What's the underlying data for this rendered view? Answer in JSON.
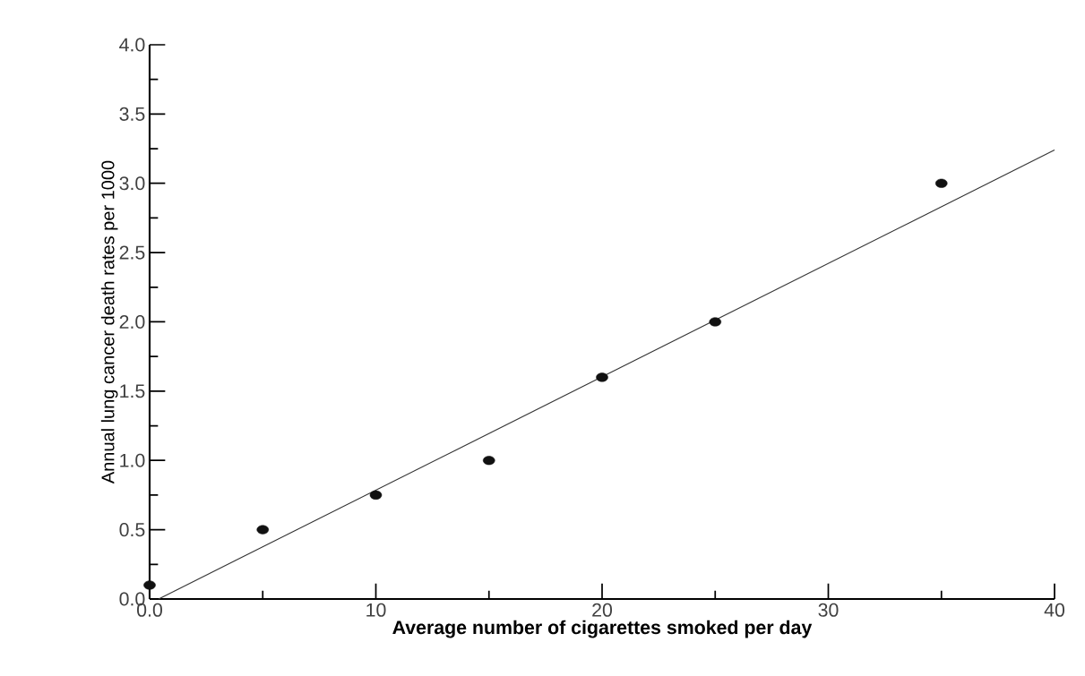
{
  "chart_data": {
    "type": "scatter",
    "xlabel": "Average number of cigarettes smoked per day",
    "ylabel": "Annual lung cancer death rates per 1000",
    "xlim": [
      0,
      40
    ],
    "ylim": [
      0,
      4
    ],
    "xticks": [
      {
        "value": 0,
        "label": "0.0"
      },
      10,
      20,
      30,
      40
    ],
    "yticks": [
      {
        "value": 0,
        "label": "0.0"
      },
      {
        "value": 0.5,
        "label": "0.5"
      },
      {
        "value": 1,
        "label": "1.0"
      },
      {
        "value": 1.5,
        "label": "1.5"
      },
      {
        "value": 2,
        "label": "2.0"
      },
      {
        "value": 2.5,
        "label": "2.5"
      },
      {
        "value": 3,
        "label": "3.0"
      },
      {
        "value": 3.5,
        "label": "3.5"
      },
      {
        "value": 4,
        "label": "4.0"
      }
    ],
    "marker": "circle",
    "grid": false,
    "series": [
      {
        "color": "#111111",
        "x": [
          0,
          5,
          10,
          15,
          20,
          25,
          35
        ],
        "values": [
          0.1,
          0.5,
          0.75,
          1.0,
          1.6,
          2.0,
          3.0
        ]
      },
      {
        "type": "line",
        "color": "#333333",
        "marker": "none",
        "line_style": "solid",
        "x": [
          0.4,
          40
        ],
        "values": [
          0,
          3.24
        ]
      }
    ]
  }
}
